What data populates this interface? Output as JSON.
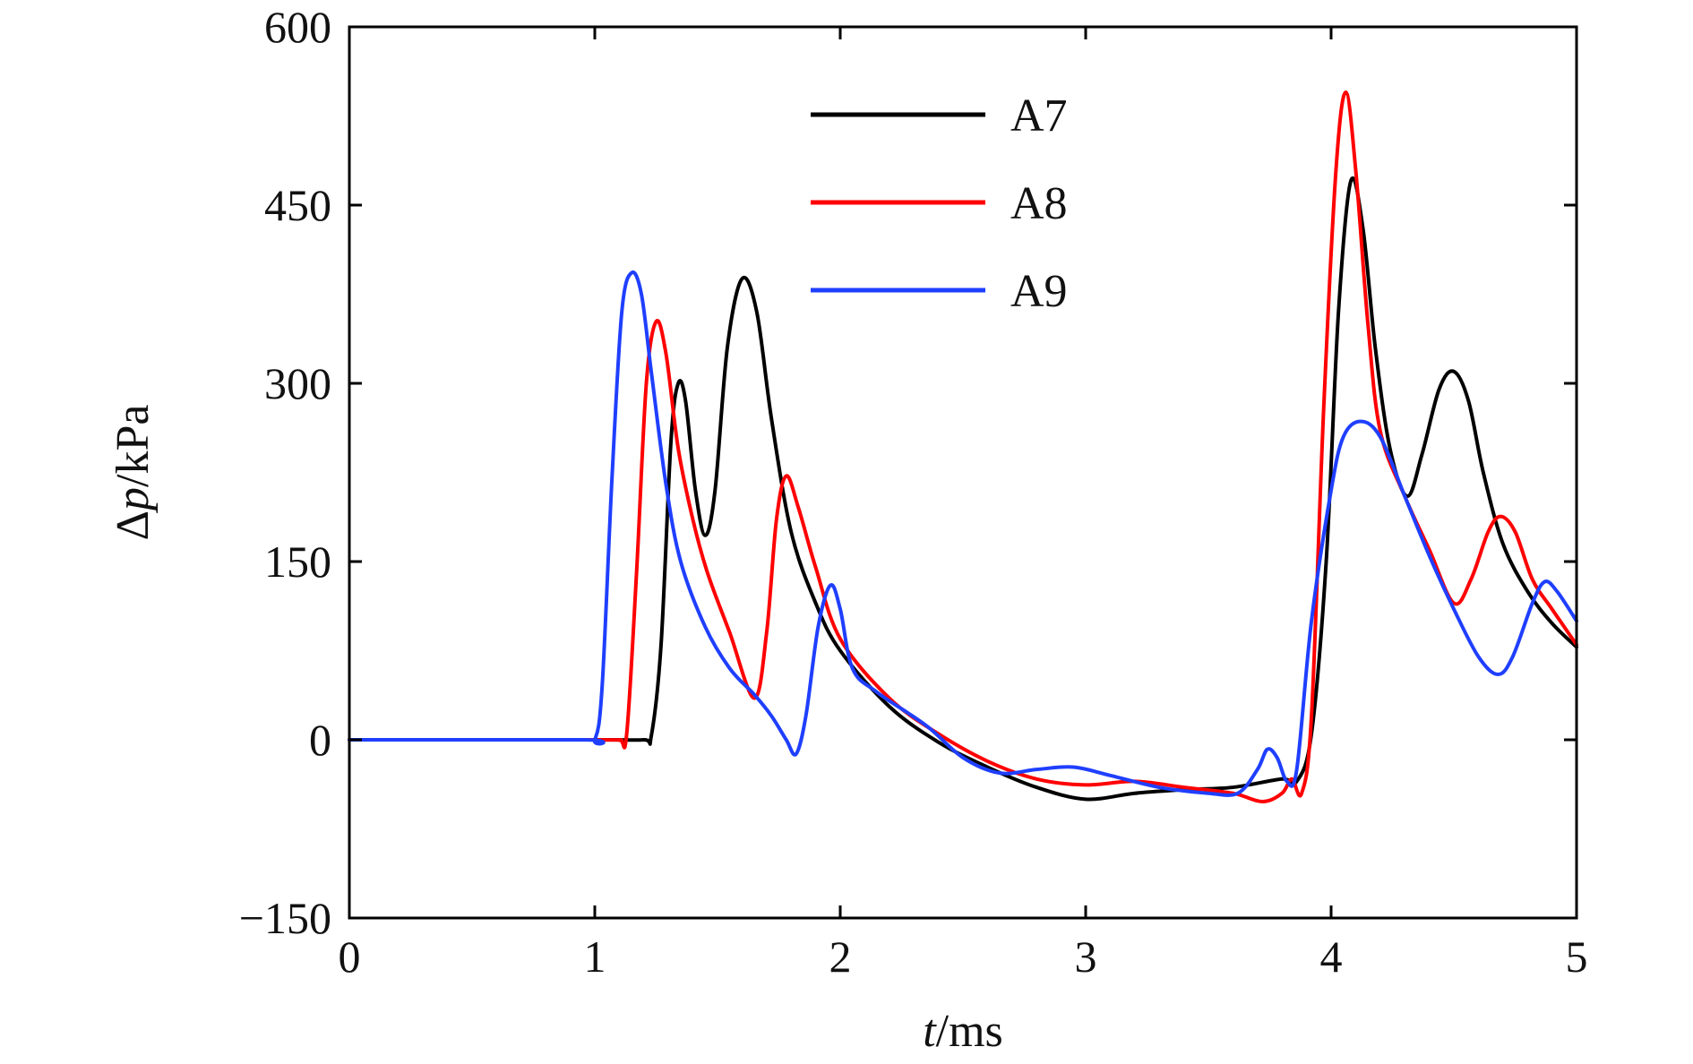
{
  "chart_data": {
    "type": "line",
    "xlabel": {
      "italic": "t",
      "rest": "/ms"
    },
    "ylabel": {
      "prefix": "Δ",
      "italic": "p",
      "rest": "/kPa"
    },
    "xlim": [
      0,
      5
    ],
    "ylim": [
      -150,
      600
    ],
    "xticks": [
      0,
      1,
      2,
      3,
      4,
      5
    ],
    "yticks": [
      -150,
      0,
      150,
      300,
      450,
      600
    ],
    "xtick_labels": [
      "0",
      "1",
      "2",
      "3",
      "4",
      "5"
    ],
    "ytick_labels": [
      "−150",
      "0",
      "150",
      "300",
      "450",
      "600"
    ],
    "grid": false,
    "legend_position": "top-center",
    "series": [
      {
        "name": "A7",
        "color": "#000000",
        "points": [
          [
            0,
            0
          ],
          [
            1.0,
            0
          ],
          [
            1.2,
            0
          ],
          [
            1.23,
            3
          ],
          [
            1.27,
            80
          ],
          [
            1.31,
            250
          ],
          [
            1.34,
            300
          ],
          [
            1.37,
            285
          ],
          [
            1.41,
            210
          ],
          [
            1.45,
            172
          ],
          [
            1.49,
            210
          ],
          [
            1.54,
            330
          ],
          [
            1.6,
            388
          ],
          [
            1.66,
            360
          ],
          [
            1.72,
            270
          ],
          [
            1.8,
            175
          ],
          [
            1.9,
            115
          ],
          [
            2.0,
            75
          ],
          [
            2.2,
            28
          ],
          [
            2.4,
            -2
          ],
          [
            2.6,
            -23
          ],
          [
            2.8,
            -40
          ],
          [
            3.0,
            -50
          ],
          [
            3.2,
            -45
          ],
          [
            3.4,
            -42
          ],
          [
            3.6,
            -40
          ],
          [
            3.8,
            -33
          ],
          [
            3.86,
            -35
          ],
          [
            3.92,
            5
          ],
          [
            3.98,
            150
          ],
          [
            4.03,
            360
          ],
          [
            4.08,
            470
          ],
          [
            4.13,
            430
          ],
          [
            4.18,
            330
          ],
          [
            4.24,
            245
          ],
          [
            4.31,
            205
          ],
          [
            4.37,
            240
          ],
          [
            4.44,
            295
          ],
          [
            4.5,
            310
          ],
          [
            4.56,
            285
          ],
          [
            4.62,
            225
          ],
          [
            4.7,
            165
          ],
          [
            4.8,
            125
          ],
          [
            4.9,
            98
          ],
          [
            5.0,
            78
          ]
        ]
      },
      {
        "name": "A8",
        "color": "#ff0000",
        "points": [
          [
            0,
            0
          ],
          [
            1.0,
            0
          ],
          [
            1.1,
            0
          ],
          [
            1.13,
            5
          ],
          [
            1.17,
            140
          ],
          [
            1.21,
            300
          ],
          [
            1.25,
            352
          ],
          [
            1.29,
            325
          ],
          [
            1.34,
            245
          ],
          [
            1.4,
            185
          ],
          [
            1.46,
            140
          ],
          [
            1.55,
            90
          ],
          [
            1.65,
            35
          ],
          [
            1.7,
            90
          ],
          [
            1.74,
            185
          ],
          [
            1.78,
            222
          ],
          [
            1.83,
            195
          ],
          [
            1.9,
            145
          ],
          [
            2.0,
            85
          ],
          [
            2.2,
            35
          ],
          [
            2.4,
            5
          ],
          [
            2.6,
            -18
          ],
          [
            2.8,
            -33
          ],
          [
            3.0,
            -38
          ],
          [
            3.2,
            -35
          ],
          [
            3.4,
            -40
          ],
          [
            3.6,
            -45
          ],
          [
            3.72,
            -52
          ],
          [
            3.8,
            -45
          ],
          [
            3.84,
            -33
          ],
          [
            3.88,
            -45
          ],
          [
            3.92,
            20
          ],
          [
            3.97,
            280
          ],
          [
            4.02,
            480
          ],
          [
            4.06,
            545
          ],
          [
            4.1,
            480
          ],
          [
            4.15,
            350
          ],
          [
            4.2,
            260
          ],
          [
            4.3,
            205
          ],
          [
            4.4,
            160
          ],
          [
            4.5,
            115
          ],
          [
            4.57,
            135
          ],
          [
            4.64,
            175
          ],
          [
            4.69,
            188
          ],
          [
            4.75,
            175
          ],
          [
            4.82,
            135
          ],
          [
            4.9,
            110
          ],
          [
            5.0,
            80
          ]
        ]
      },
      {
        "name": "A9",
        "color": "#1f3fff",
        "points": [
          [
            0,
            0
          ],
          [
            0.95,
            0
          ],
          [
            1.0,
            0
          ],
          [
            1.03,
            45
          ],
          [
            1.07,
            220
          ],
          [
            1.11,
            360
          ],
          [
            1.15,
            393
          ],
          [
            1.19,
            375
          ],
          [
            1.23,
            310
          ],
          [
            1.29,
            215
          ],
          [
            1.35,
            150
          ],
          [
            1.45,
            95
          ],
          [
            1.55,
            60
          ],
          [
            1.65,
            38
          ],
          [
            1.72,
            20
          ],
          [
            1.78,
            0
          ],
          [
            1.82,
            -12
          ],
          [
            1.86,
            20
          ],
          [
            1.91,
            95
          ],
          [
            1.96,
            130
          ],
          [
            2.0,
            110
          ],
          [
            2.05,
            60
          ],
          [
            2.15,
            40
          ],
          [
            2.35,
            12
          ],
          [
            2.5,
            -15
          ],
          [
            2.65,
            -28
          ],
          [
            2.8,
            -25
          ],
          [
            2.95,
            -23
          ],
          [
            3.1,
            -30
          ],
          [
            3.3,
            -40
          ],
          [
            3.5,
            -45
          ],
          [
            3.62,
            -45
          ],
          [
            3.7,
            -25
          ],
          [
            3.74,
            -8
          ],
          [
            3.78,
            -15
          ],
          [
            3.82,
            -35
          ],
          [
            3.86,
            -25
          ],
          [
            3.92,
            100
          ],
          [
            4.0,
            210
          ],
          [
            4.05,
            255
          ],
          [
            4.12,
            268
          ],
          [
            4.2,
            255
          ],
          [
            4.3,
            205
          ],
          [
            4.4,
            155
          ],
          [
            4.5,
            110
          ],
          [
            4.6,
            70
          ],
          [
            4.68,
            55
          ],
          [
            4.74,
            70
          ],
          [
            4.82,
            115
          ],
          [
            4.87,
            133
          ],
          [
            4.92,
            125
          ],
          [
            5.0,
            100
          ]
        ]
      }
    ]
  }
}
